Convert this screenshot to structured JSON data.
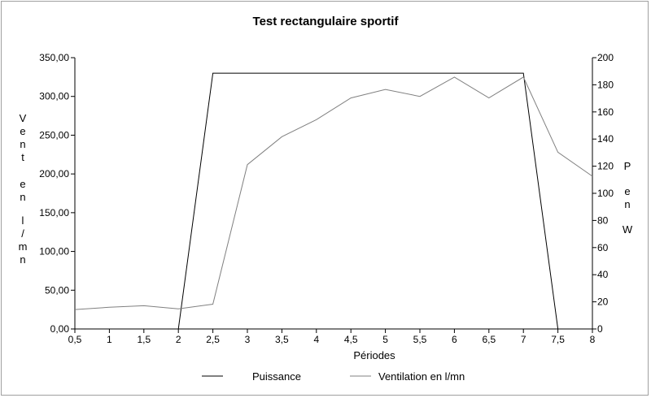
{
  "chart_data": {
    "type": "line",
    "title": "Test rectangulaire sportif",
    "xlabel": "Périodes",
    "ylabel_left_letters": [
      "V",
      "e",
      "n",
      "t",
      "e",
      "n",
      "l",
      "/",
      "m",
      "n"
    ],
    "ylabel_right_letters": [
      "P",
      "e",
      "n",
      "W"
    ],
    "x_ticks": [
      "0,5",
      "1",
      "1,5",
      "2",
      "2,5",
      "3",
      "3,5",
      "4",
      "4,5",
      "5",
      "5,5",
      "6",
      "6,5",
      "7",
      "7,5",
      "8"
    ],
    "xlim": [
      0.5,
      8
    ],
    "y_left": {
      "ylim": [
        0,
        350
      ],
      "ticks": [
        "0,00",
        "50,00",
        "100,00",
        "150,00",
        "200,00",
        "250,00",
        "300,00",
        "350,00"
      ]
    },
    "y_right": {
      "ylim": [
        0,
        200
      ],
      "ticks": [
        "0",
        "20",
        "40",
        "60",
        "80",
        "100",
        "120",
        "140",
        "160",
        "180",
        "200"
      ]
    },
    "series": [
      {
        "name": "Puissance",
        "axis": "left",
        "color": "#000000",
        "x": [
          2,
          2.5,
          7,
          7.5
        ],
        "values": [
          0,
          330,
          330,
          0
        ]
      },
      {
        "name": "Ventilation en l/mn",
        "axis": "left",
        "color": "#808080",
        "x": [
          0.5,
          1,
          1.5,
          2,
          2.5,
          3,
          3.5,
          4,
          4.5,
          5,
          5.5,
          6,
          6.5,
          7,
          7.5,
          8
        ],
        "values": [
          25,
          28,
          30,
          26,
          32,
          212,
          248,
          270,
          298,
          309,
          300,
          325,
          298,
          325,
          228,
          197
        ]
      }
    ],
    "legend_position": "bottom",
    "grid": false
  }
}
